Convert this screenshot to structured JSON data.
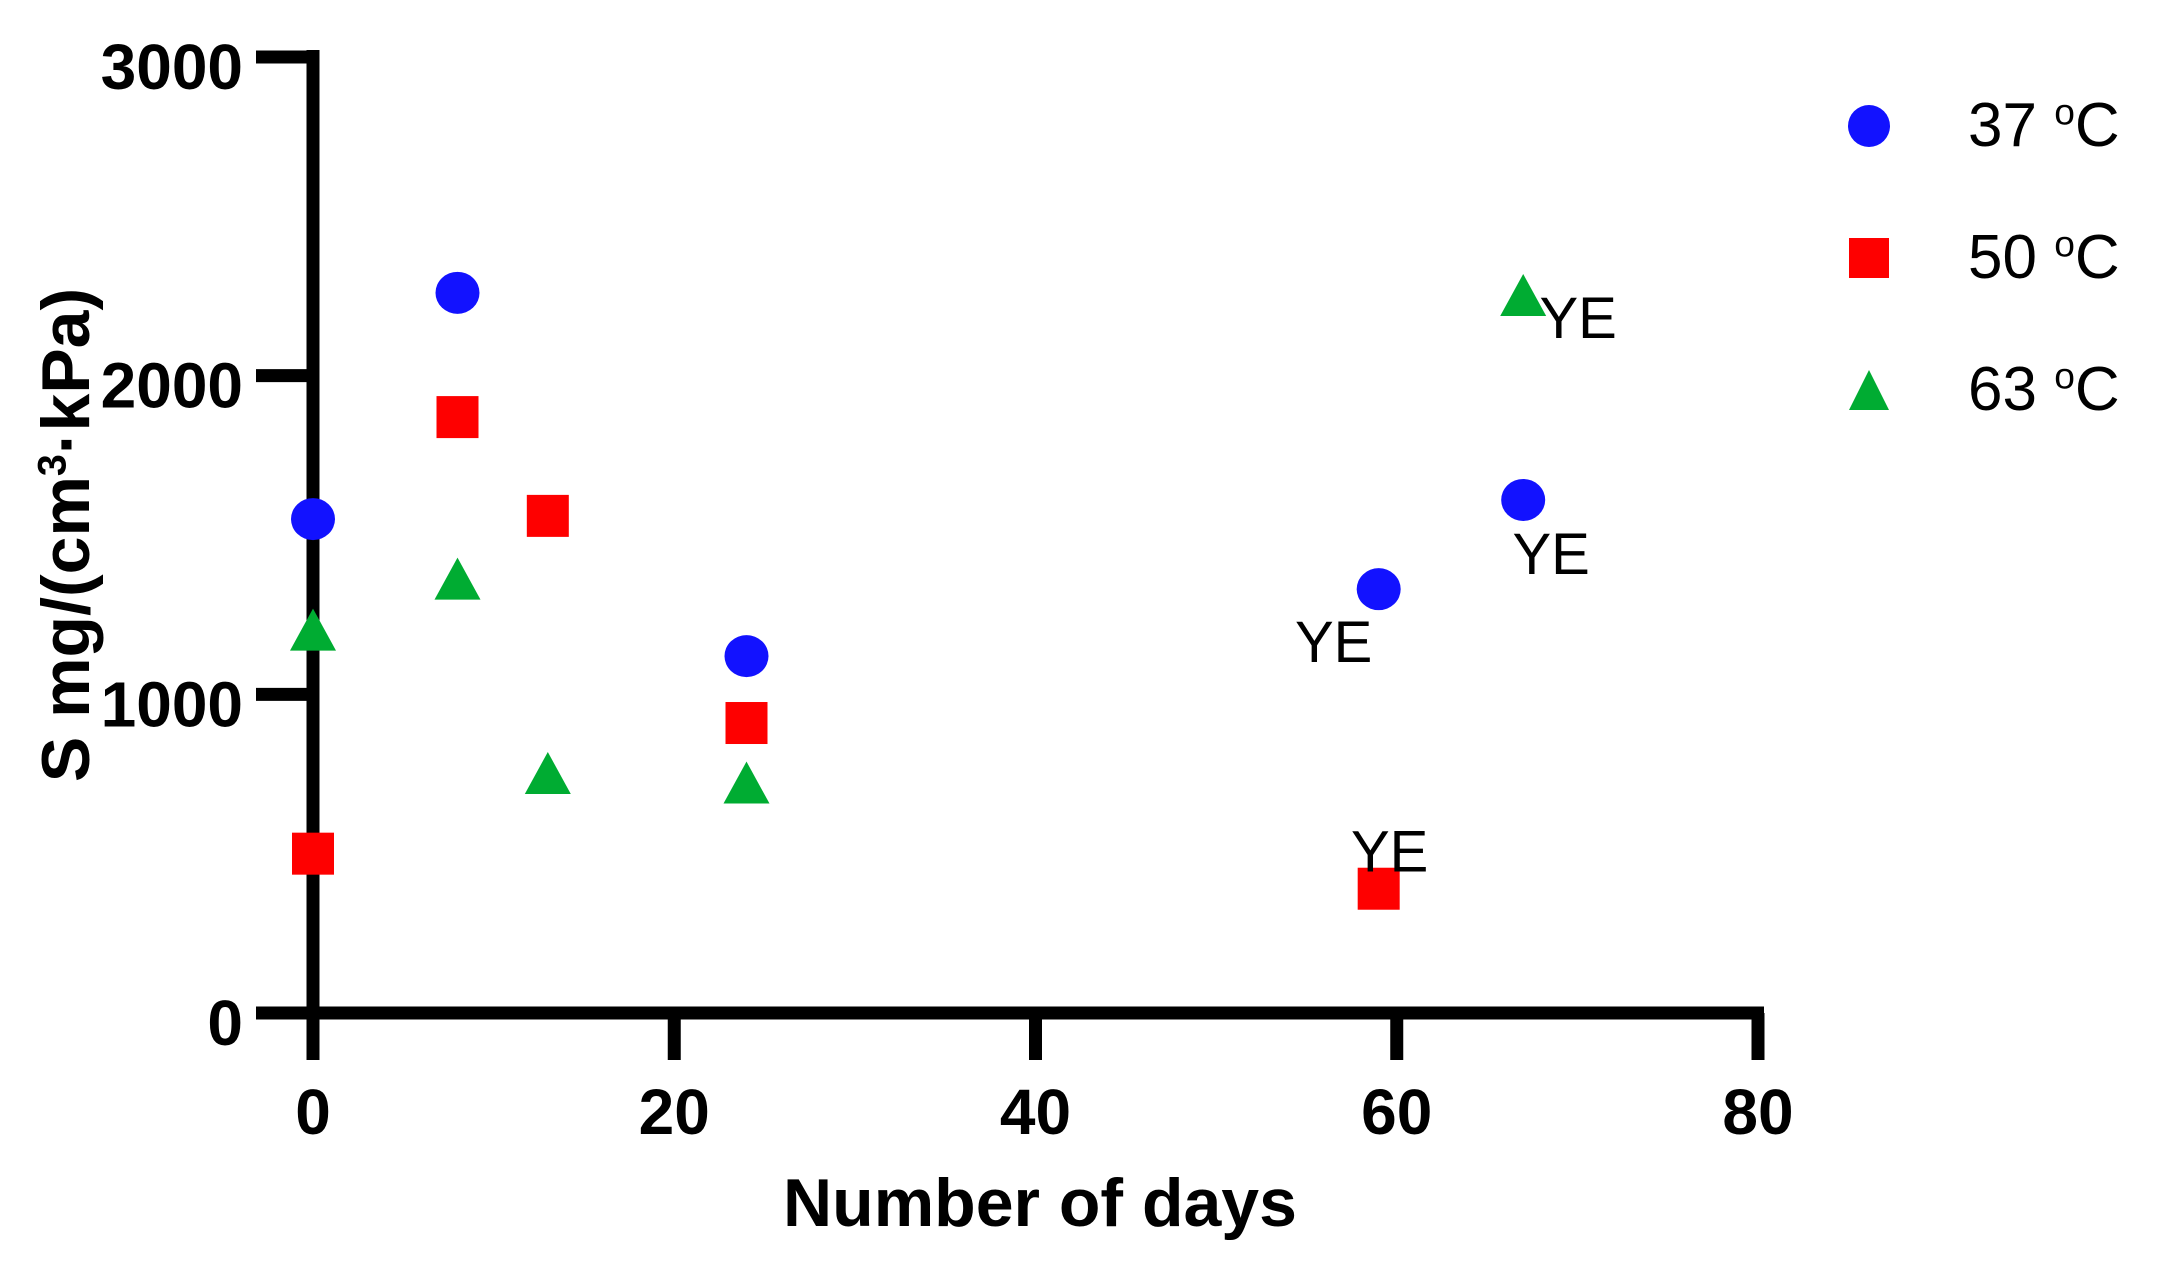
{
  "chart": {
    "background": "#FFFFFF",
    "axis_color": "#000000",
    "y_title": {
      "pre": "S mg/(cm",
      "sup": "3",
      "post": "·kPa)",
      "full": "S mg/(cm³·kPa)"
    }
  },
  "chart_data": {
    "type": "scatter",
    "title": "",
    "xlabel": "Number of days",
    "ylabel": "S mg/(cm³·kPa)",
    "xlim": [
      0,
      80
    ],
    "ylim": [
      0,
      3000
    ],
    "x_ticks": [
      0,
      20,
      40,
      60,
      80
    ],
    "y_ticks": [
      0,
      1000,
      2000,
      3000
    ],
    "grid": false,
    "legend_position": "top-right",
    "series": [
      {
        "name": "37 °C",
        "label_parts": {
          "num": "37 ",
          "sup": "o",
          "unit": "C"
        },
        "marker": "circle",
        "color": "#1212FF",
        "points": [
          [
            0,
            1550
          ],
          [
            8,
            2260
          ],
          [
            24,
            1120
          ],
          [
            59,
            1330
          ],
          [
            67,
            1610
          ]
        ]
      },
      {
        "name": "50 °C",
        "label_parts": {
          "num": "50 ",
          "sup": "o",
          "unit": "C"
        },
        "marker": "square",
        "color": "#FE0000",
        "points": [
          [
            0,
            500
          ],
          [
            8,
            1870
          ],
          [
            13,
            1560
          ],
          [
            24,
            910
          ],
          [
            59,
            390
          ]
        ]
      },
      {
        "name": "63 °C",
        "label_parts": {
          "num": "63 ",
          "sup": "o",
          "unit": "C"
        },
        "marker": "triangle",
        "color": "#00AC32",
        "points": [
          [
            0,
            1200
          ],
          [
            8,
            1360
          ],
          [
            13,
            750
          ],
          [
            24,
            720
          ],
          [
            67,
            2250
          ]
        ]
      }
    ],
    "annotations": [
      {
        "text": "YE",
        "series": "37 °C",
        "x": 59,
        "y": 1330,
        "placement": "below-left"
      },
      {
        "text": "YE",
        "series": "37 °C",
        "x": 67,
        "y": 1610,
        "placement": "below-right"
      },
      {
        "text": "YE",
        "series": "50 °C",
        "x": 59,
        "y": 390,
        "placement": "above"
      },
      {
        "text": "YE",
        "series": "63 °C",
        "x": 67,
        "y": 2250,
        "placement": "right"
      }
    ]
  }
}
